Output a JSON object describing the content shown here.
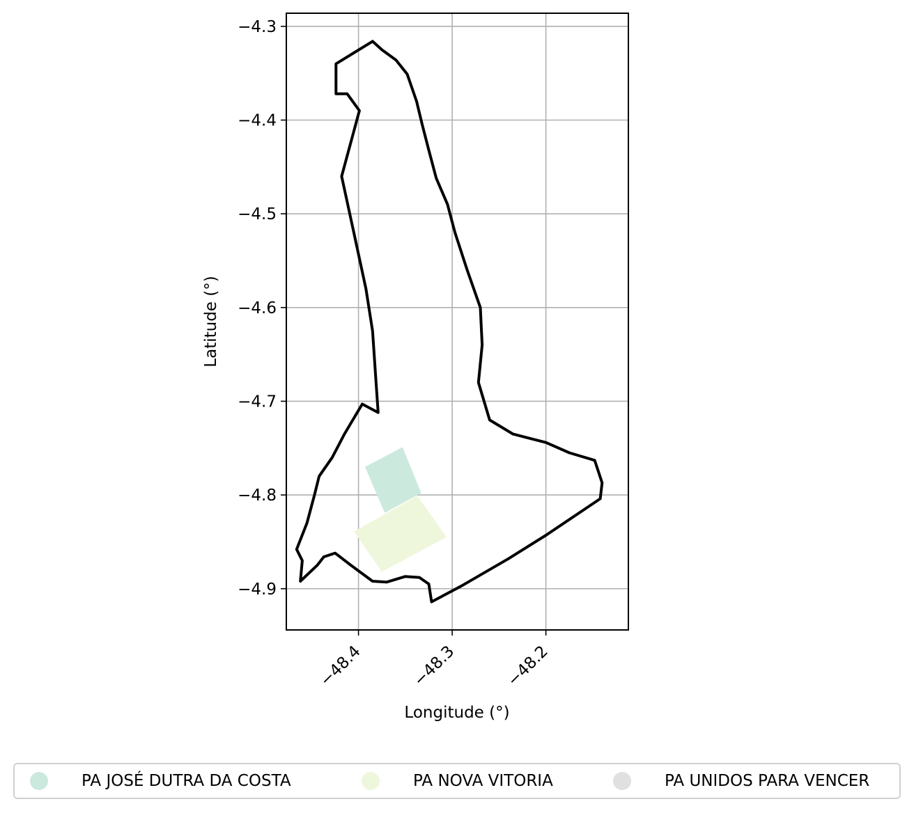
{
  "chart_data": {
    "type": "map",
    "xlabel": "Longitude (°)",
    "ylabel": "Latitude (°)",
    "xlim": [
      -48.477,
      -48.112
    ],
    "ylim": [
      -4.944,
      -4.286
    ],
    "grid": true,
    "x_ticks": [
      {
        "value": -48.4,
        "label": "−48.4"
      },
      {
        "value": -48.3,
        "label": "−48.3"
      },
      {
        "value": -48.2,
        "label": "−48.2"
      }
    ],
    "y_ticks": [
      {
        "value": -4.3,
        "label": "−4.3"
      },
      {
        "value": -4.4,
        "label": "−4.4"
      },
      {
        "value": -4.5,
        "label": "−4.5"
      },
      {
        "value": -4.6,
        "label": "−4.6"
      },
      {
        "value": -4.7,
        "label": "−4.7"
      },
      {
        "value": -4.8,
        "label": "−4.8"
      },
      {
        "value": -4.9,
        "label": "−4.9"
      }
    ],
    "boundary": [
      [
        -48.385,
        -4.316
      ],
      [
        -48.375,
        -4.325
      ],
      [
        -48.36,
        -4.336
      ],
      [
        -48.348,
        -4.351
      ],
      [
        -48.338,
        -4.38
      ],
      [
        -48.332,
        -4.405
      ],
      [
        -48.325,
        -4.432
      ],
      [
        -48.317,
        -4.462
      ],
      [
        -48.305,
        -4.49
      ],
      [
        -48.297,
        -4.52
      ],
      [
        -48.284,
        -4.56
      ],
      [
        -48.27,
        -4.6
      ],
      [
        -48.268,
        -4.64
      ],
      [
        -48.272,
        -4.68
      ],
      [
        -48.26,
        -4.72
      ],
      [
        -48.235,
        -4.735
      ],
      [
        -48.2,
        -4.744
      ],
      [
        -48.175,
        -4.755
      ],
      [
        -48.148,
        -4.763
      ],
      [
        -48.14,
        -4.787
      ],
      [
        -48.142,
        -4.804
      ],
      [
        -48.2,
        -4.843
      ],
      [
        -48.24,
        -4.868
      ],
      [
        -48.29,
        -4.897
      ],
      [
        -48.322,
        -4.914
      ],
      [
        -48.325,
        -4.895
      ],
      [
        -48.335,
        -4.888
      ],
      [
        -48.35,
        -4.887
      ],
      [
        -48.37,
        -4.893
      ],
      [
        -48.385,
        -4.892
      ],
      [
        -48.408,
        -4.875
      ],
      [
        -48.425,
        -4.862
      ],
      [
        -48.437,
        -4.866
      ],
      [
        -48.444,
        -4.875
      ],
      [
        -48.462,
        -4.892
      ],
      [
        -48.46,
        -4.87
      ],
      [
        -48.466,
        -4.858
      ],
      [
        -48.455,
        -4.83
      ],
      [
        -48.447,
        -4.8
      ],
      [
        -48.442,
        -4.78
      ],
      [
        -48.428,
        -4.76
      ],
      [
        -48.415,
        -4.735
      ],
      [
        -48.396,
        -4.703
      ],
      [
        -48.379,
        -4.712
      ],
      [
        -48.381,
        -4.683
      ],
      [
        -48.385,
        -4.625
      ],
      [
        -48.392,
        -4.58
      ],
      [
        -48.405,
        -4.52
      ],
      [
        -48.418,
        -4.46
      ],
      [
        -48.399,
        -4.39
      ],
      [
        -48.412,
        -4.372
      ],
      [
        -48.424,
        -4.372
      ],
      [
        -48.424,
        -4.34
      ],
      [
        -48.385,
        -4.316
      ]
    ],
    "parcels": [
      {
        "name": "PA JOSÉ DUTRA DA COSTA",
        "color": "#cce9de",
        "polygon": [
          [
            -48.393,
            -4.77
          ],
          [
            -48.353,
            -4.749
          ],
          [
            -48.333,
            -4.798
          ],
          [
            -48.372,
            -4.819
          ]
        ]
      },
      {
        "name": "PA NOVA VITORIA",
        "color": "#eef7dc",
        "polygon": [
          [
            -48.405,
            -4.839
          ],
          [
            -48.337,
            -4.801
          ],
          [
            -48.306,
            -4.845
          ],
          [
            -48.375,
            -4.882
          ]
        ]
      }
    ],
    "legend": {
      "placement": "bottom-center",
      "entries": [
        {
          "label": "PA JOSÉ DUTRA DA COSTA",
          "color": "#cce9de"
        },
        {
          "label": "PA NOVA VITORIA",
          "color": "#eef7dc"
        },
        {
          "label": "PA UNIDOS PARA VENCER",
          "color": "#e0e0e0"
        }
      ]
    }
  }
}
